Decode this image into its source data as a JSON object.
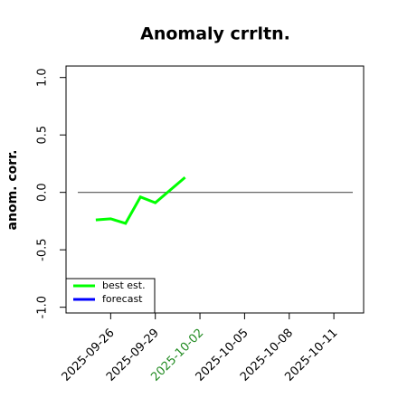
{
  "chart_data": {
    "type": "line",
    "title": "Anomaly crrltn.",
    "y_label": "anom. corr.",
    "x": [
      "2025-09-25",
      "2025-09-26",
      "2025-09-27",
      "2025-09-28",
      "2025-09-29",
      "2025-09-30",
      "2025-10-01"
    ],
    "series": [
      {
        "name": "best est.",
        "color": "#00ff00",
        "values": [
          -0.24,
          -0.23,
          -0.27,
          -0.04,
          -0.09,
          0.02,
          0.13
        ]
      },
      {
        "name": "forecast",
        "color": "#0000ff",
        "values": [
          null,
          null,
          null,
          null,
          null,
          null,
          null
        ]
      }
    ],
    "xlim": [
      "2025-09-23",
      "2025-10-13"
    ],
    "xticks": [
      "2025-09-26",
      "2025-09-29",
      "2025-10-02",
      "2025-10-05",
      "2025-10-08",
      "2025-10-11"
    ],
    "xtick_highlight": {
      "index": 2,
      "color": "#228b22"
    },
    "ylim": [
      -1.05,
      1.1
    ],
    "yticks": [
      {
        "value": -1,
        "label": "-1.0"
      },
      {
        "value": -0.5,
        "label": "-0.5"
      },
      {
        "value": 0,
        "label": "0.0"
      },
      {
        "value": 0.5,
        "label": "0.5"
      },
      {
        "value": 1,
        "label": "1.0"
      }
    ],
    "hline": 0,
    "hline_color": "#555555",
    "legend": "bottom-left"
  }
}
